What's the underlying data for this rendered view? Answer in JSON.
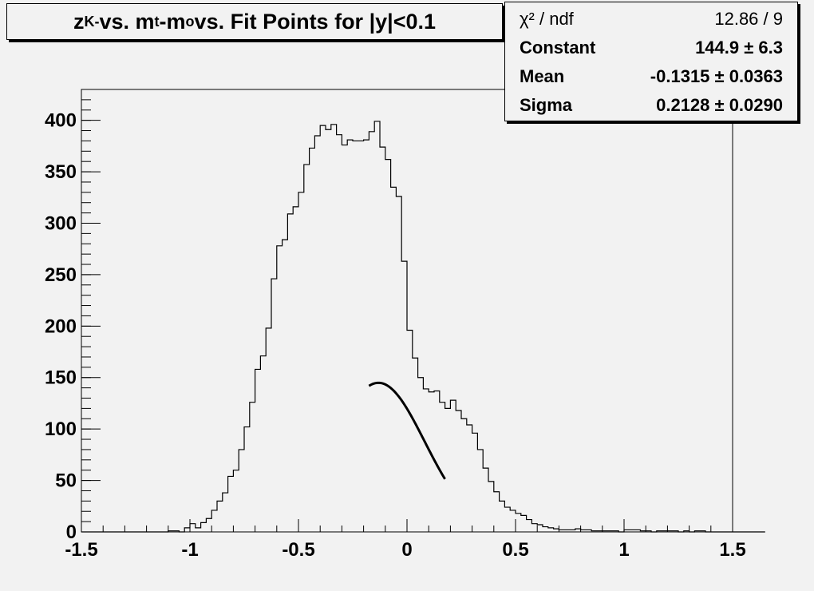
{
  "title": {
    "prefix": "z",
    "sub1": "K-",
    "middle": " vs. m",
    "sub2": "t",
    "middle2": "-m",
    "sub3": "o",
    "suffix": " vs. Fit Points for |y|<0.1"
  },
  "stats": [
    {
      "label": "χ² / ndf",
      "value": "12.86 / 9"
    },
    {
      "label": "Constant",
      "value": "144.9 ± 6.3"
    },
    {
      "label": "Mean",
      "value": "-0.1315 ± 0.0363"
    },
    {
      "label": "Sigma",
      "value": "0.2128 ± 0.0290"
    }
  ],
  "chart_data": {
    "type": "histogram",
    "title": "zK- vs. mt-mo vs. Fit Points for |y|<0.1",
    "xlim": [
      -1.5,
      1.5
    ],
    "ylim": [
      0,
      430
    ],
    "x_ticks": [
      -1.5,
      -1,
      -0.5,
      0,
      0.5,
      1,
      1.5
    ],
    "x_tick_labels": [
      "-1.5",
      "-1",
      "-0.5",
      "0",
      "0.5",
      "1",
      "1.5"
    ],
    "y_ticks": [
      0,
      50,
      100,
      150,
      200,
      250,
      300,
      350,
      400
    ],
    "y_tick_labels": [
      "0",
      "50",
      "100",
      "150",
      "200",
      "250",
      "300",
      "350",
      "400"
    ],
    "bin_width": 0.025,
    "bin_start": -1.5,
    "counts": [
      0,
      0,
      0,
      0,
      0,
      0,
      0,
      0,
      0,
      0,
      0,
      0,
      0,
      0,
      0,
      0,
      1,
      1,
      0,
      4,
      8,
      4,
      9,
      13,
      21,
      30,
      38,
      54,
      60,
      80,
      102,
      126,
      158,
      171,
      198,
      246,
      278,
      284,
      309,
      316,
      330,
      357,
      373,
      385,
      395,
      391,
      396,
      386,
      376,
      381,
      380,
      380,
      381,
      389,
      399,
      374,
      362,
      335,
      326,
      263,
      196,
      169,
      150,
      139,
      136,
      137,
      126,
      120,
      128,
      118,
      110,
      104,
      96,
      80,
      62,
      49,
      39,
      30,
      24,
      21,
      18,
      16,
      12,
      8,
      7,
      5,
      4,
      3,
      2,
      2,
      2,
      3,
      2,
      2,
      1,
      1,
      1,
      1,
      1,
      0,
      2,
      2,
      2,
      1,
      1,
      0,
      1,
      1,
      1,
      1,
      0,
      1,
      0,
      1,
      1,
      0,
      0,
      0,
      0,
      0,
      0,
      0,
      0,
      0,
      0,
      0
    ],
    "fit": {
      "function": "gaus",
      "constant": 144.9,
      "mean": -0.1315,
      "sigma": 0.2128,
      "range": [
        -0.175,
        0.175
      ]
    }
  }
}
